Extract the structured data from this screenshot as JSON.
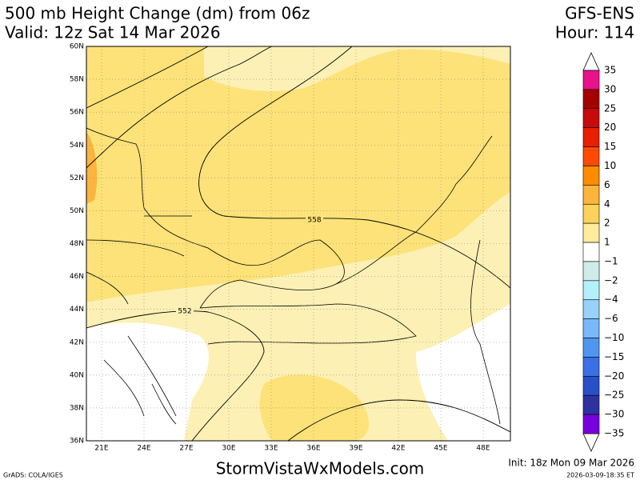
{
  "header": {
    "title": "500 mb Height Change (dm) from 06z",
    "valid": "Valid: 12z Sat 14 Mar 2026",
    "model": "GFS-ENS",
    "hour": "Hour: 114"
  },
  "map": {
    "lat_labels": [
      "60N",
      "58N",
      "56N",
      "54N",
      "52N",
      "50N",
      "48N",
      "46N",
      "44N",
      "42N",
      "40N",
      "38N",
      "36N"
    ],
    "lon_labels": [
      "21E",
      "24E",
      "27E",
      "30E",
      "33E",
      "36E",
      "39E",
      "42E",
      "45E",
      "48E"
    ],
    "contour_labels": [
      "558",
      "552"
    ]
  },
  "legend": {
    "labels": [
      "35",
      "30",
      "25",
      "20",
      "15",
      "10",
      "6",
      "4",
      "2",
      "1",
      "−1",
      "−2",
      "−4",
      "−6",
      "−10",
      "−15",
      "−20",
      "−25",
      "−30",
      "−35"
    ]
  },
  "footer": {
    "credit": "GrADS: COLA/IGES",
    "site": "StormVistaWxModels.com",
    "init": "Init: 18z Mon 09 Mar 2026",
    "stamp": "2026-03-09-18:35 ET"
  }
}
